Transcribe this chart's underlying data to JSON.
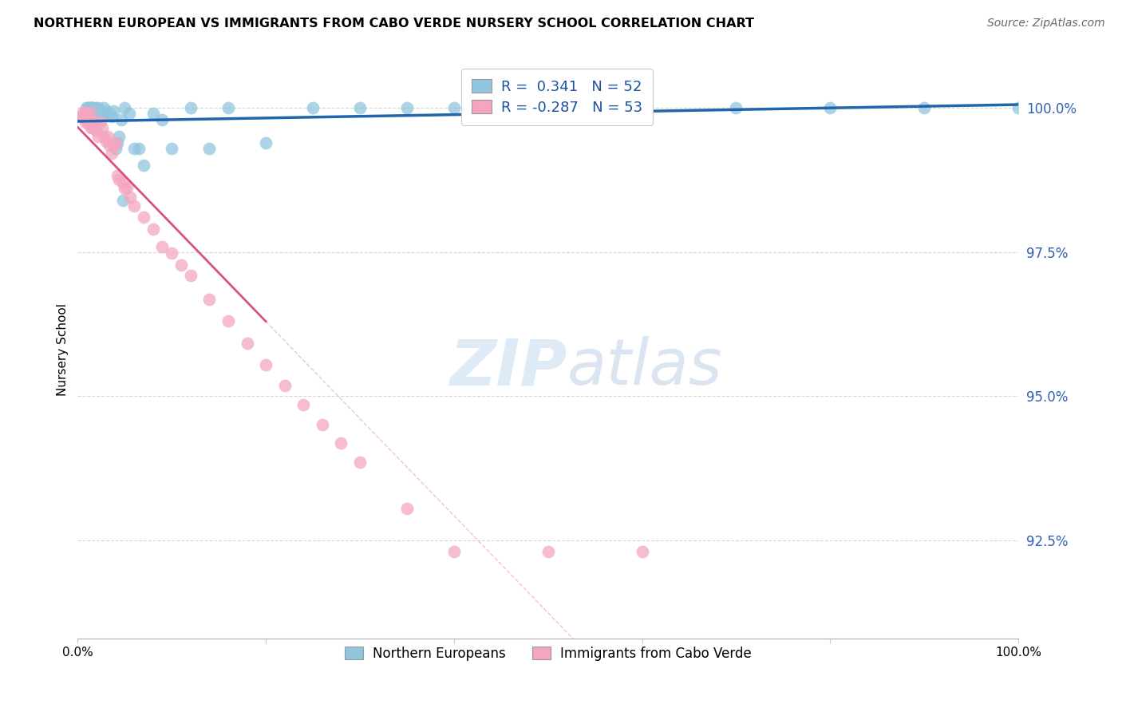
{
  "title": "NORTHERN EUROPEAN VS IMMIGRANTS FROM CABO VERDE NURSERY SCHOOL CORRELATION CHART",
  "source": "Source: ZipAtlas.com",
  "ylabel": "Nursery School",
  "ytick_labels": [
    "100.0%",
    "97.5%",
    "95.0%",
    "92.5%"
  ],
  "ytick_values": [
    1.0,
    0.975,
    0.95,
    0.925
  ],
  "xmin": 0.0,
  "xmax": 1.0,
  "ymin": 0.908,
  "ymax": 1.008,
  "legend_label1": "Northern Europeans",
  "legend_label2": "Immigrants from Cabo Verde",
  "R1": 0.341,
  "N1": 52,
  "R2": -0.287,
  "N2": 53,
  "blue_color": "#92c5de",
  "pink_color": "#f4a6c0",
  "blue_line_color": "#2166ac",
  "pink_line_color": "#d6537a",
  "watermark_zip": "ZIP",
  "watermark_atlas": "atlas",
  "blue_x": [
    0.005,
    0.007,
    0.008,
    0.009,
    0.01,
    0.011,
    0.012,
    0.013,
    0.014,
    0.015,
    0.016,
    0.017,
    0.018,
    0.02,
    0.022,
    0.024,
    0.026,
    0.028,
    0.03,
    0.032,
    0.034,
    0.036,
    0.038,
    0.04,
    0.042,
    0.044,
    0.046,
    0.048,
    0.05,
    0.055,
    0.06,
    0.065,
    0.07,
    0.08,
    0.09,
    0.1,
    0.12,
    0.14,
    0.16,
    0.2,
    0.25,
    0.3,
    0.35,
    0.4,
    0.45,
    0.5,
    0.55,
    0.6,
    0.7,
    0.8,
    0.9,
    1.0
  ],
  "blue_y": [
    0.9985,
    0.999,
    0.9985,
    1.0,
    0.9995,
    1.0,
    1.0,
    1.0,
    1.0,
    1.0,
    1.0,
    1.0,
    0.9995,
    1.0,
    1.0,
    0.9985,
    0.999,
    1.0,
    0.9995,
    0.999,
    0.999,
    0.9985,
    0.9995,
    0.993,
    0.994,
    0.995,
    0.998,
    0.984,
    1.0,
    0.999,
    0.993,
    0.993,
    0.99,
    0.999,
    0.998,
    0.993,
    1.0,
    0.993,
    1.0,
    0.994,
    1.0,
    1.0,
    1.0,
    1.0,
    1.0,
    1.0,
    1.0,
    1.0,
    1.0,
    1.0,
    1.0,
    1.0
  ],
  "pink_x": [
    0.004,
    0.005,
    0.006,
    0.007,
    0.008,
    0.009,
    0.01,
    0.011,
    0.012,
    0.013,
    0.014,
    0.015,
    0.016,
    0.017,
    0.018,
    0.019,
    0.02,
    0.022,
    0.024,
    0.026,
    0.028,
    0.03,
    0.032,
    0.034,
    0.036,
    0.038,
    0.04,
    0.042,
    0.044,
    0.048,
    0.052,
    0.056,
    0.06,
    0.07,
    0.08,
    0.09,
    0.1,
    0.11,
    0.12,
    0.14,
    0.16,
    0.18,
    0.2,
    0.22,
    0.24,
    0.26,
    0.28,
    0.3,
    0.35,
    0.4,
    0.5,
    0.6,
    0.05
  ],
  "pink_y": [
    0.9985,
    0.9988,
    0.9992,
    0.9985,
    0.9975,
    0.9992,
    0.9992,
    0.9975,
    0.9972,
    0.9992,
    0.9965,
    0.9975,
    0.9965,
    0.9975,
    0.9965,
    0.9975,
    0.996,
    0.995,
    0.9975,
    0.9965,
    0.995,
    0.9942,
    0.995,
    0.9935,
    0.9922,
    0.9935,
    0.994,
    0.9882,
    0.9875,
    0.987,
    0.9862,
    0.9845,
    0.983,
    0.981,
    0.979,
    0.976,
    0.9748,
    0.9728,
    0.971,
    0.9668,
    0.963,
    0.9592,
    0.9555,
    0.9518,
    0.9485,
    0.945,
    0.9418,
    0.9385,
    0.9305,
    0.923,
    0.923,
    0.923,
    0.986
  ]
}
